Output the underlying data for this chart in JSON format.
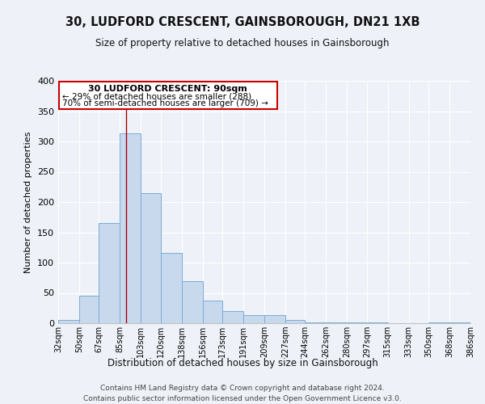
{
  "title": "30, LUDFORD CRESCENT, GAINSBOROUGH, DN21 1XB",
  "subtitle": "Size of property relative to detached houses in Gainsborough",
  "xlabel": "Distribution of detached houses by size in Gainsborough",
  "ylabel": "Number of detached properties",
  "bar_color": "#c8d9ee",
  "bar_edge_color": "#7aadd4",
  "background_color": "#eef2f8",
  "grid_color": "#ffffff",
  "vline_x": 90,
  "vline_color": "#aa0000",
  "annotation_box_color": "#cc0000",
  "annotation_title": "30 LUDFORD CRESCENT: 90sqm",
  "annotation_line1": "← 29% of detached houses are smaller (288)",
  "annotation_line2": "70% of semi-detached houses are larger (709) →",
  "bins": [
    32,
    50,
    67,
    85,
    103,
    120,
    138,
    156,
    173,
    191,
    209,
    227,
    244,
    262,
    280,
    297,
    315,
    333,
    350,
    368,
    386
  ],
  "bin_labels": [
    "32sqm",
    "50sqm",
    "67sqm",
    "85sqm",
    "103sqm",
    "120sqm",
    "138sqm",
    "156sqm",
    "173sqm",
    "191sqm",
    "209sqm",
    "227sqm",
    "244sqm",
    "262sqm",
    "280sqm",
    "297sqm",
    "315sqm",
    "333sqm",
    "350sqm",
    "368sqm",
    "386sqm"
  ],
  "counts": [
    5,
    46,
    165,
    313,
    215,
    116,
    69,
    38,
    20,
    13,
    13,
    5,
    2,
    1,
    1,
    1,
    0,
    0,
    1,
    1
  ],
  "ylim": [
    0,
    400
  ],
  "yticks": [
    0,
    50,
    100,
    150,
    200,
    250,
    300,
    350,
    400
  ],
  "footer1": "Contains HM Land Registry data © Crown copyright and database right 2024.",
  "footer2": "Contains public sector information licensed under the Open Government Licence v3.0."
}
